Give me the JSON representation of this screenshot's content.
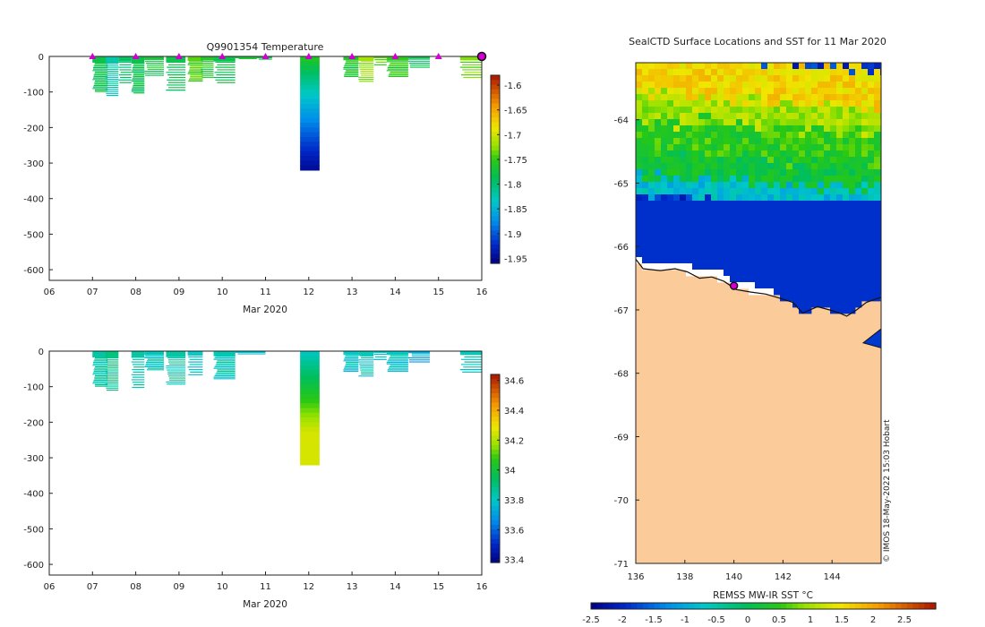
{
  "colors": {
    "background": "#ffffff",
    "land": "#fbcb9a",
    "marker_fill": "#d100d1",
    "ice_white": "#ffffff"
  },
  "charts": {
    "temperature": {
      "title": "Q9901354  Temperature",
      "xlabel": "Mar 2020",
      "x_ticks": [
        "06",
        "07",
        "08",
        "09",
        "10",
        "11",
        "12",
        "13",
        "14",
        "15",
        "16"
      ],
      "y_ticks": [
        "0",
        "-100",
        "-200",
        "-300",
        "-400",
        "-500",
        "-600"
      ],
      "colorbar_ticks": [
        "-1.6",
        "-1.65",
        "-1.7",
        "-1.75",
        "-1.8",
        "-1.85",
        "-1.9",
        "-1.95"
      ]
    },
    "salinity": {
      "title": "",
      "xlabel": "Mar 2020",
      "x_ticks": [
        "06",
        "07",
        "08",
        "09",
        "10",
        "11",
        "12",
        "13",
        "14",
        "15",
        "16"
      ],
      "y_ticks": [
        "0",
        "-100",
        "-200",
        "-300",
        "-400",
        "-500",
        "-600"
      ],
      "colorbar_ticks": [
        "34.6",
        "34.4",
        "34.2",
        "34",
        "33.8",
        "33.6",
        "33.4"
      ]
    },
    "map": {
      "title": "SealCTD Surface Locations and SST for 11 Mar 2020",
      "y_ticks": [
        "-64",
        "-65",
        "-66",
        "-67",
        "-68",
        "-69",
        "-70",
        "-71"
      ],
      "x_ticks": [
        "136",
        "138",
        "140",
        "142",
        "144"
      ],
      "colorbar_label": "REMSS MW-IR SST °C",
      "colorbar_ticks": [
        "-2.5",
        "-2",
        "-1.5",
        "-1",
        "-0.5",
        "0",
        "0.5",
        "1",
        "1.5",
        "2",
        "2.5"
      ],
      "credit": "© IMOS 18-May-2022 15:03 Hobart"
    }
  },
  "chart_data": [
    {
      "type": "heatmap",
      "title": "Q9901354  Temperature",
      "xlabel": "Mar 2020",
      "ylabel": "",
      "xlim": [
        6,
        16
      ],
      "ylim": [
        -630,
        0
      ],
      "clim": [
        -1.96,
        -1.58
      ],
      "profile_markers_x": [
        7,
        8,
        9,
        10,
        11,
        12,
        13,
        14,
        15,
        16
      ],
      "profiles": [
        {
          "x": 7.0,
          "w": 0.35,
          "min_depth": -100,
          "value": -1.78
        },
        {
          "x": 7.3,
          "w": 0.3,
          "min_depth": -112,
          "value": -1.82
        },
        {
          "x": 7.6,
          "w": 0.3,
          "min_depth": -80,
          "value": -1.79
        },
        {
          "x": 7.9,
          "w": 0.3,
          "min_depth": -105,
          "value": -1.78
        },
        {
          "x": 8.2,
          "w": 0.45,
          "min_depth": -55,
          "value": -1.77
        },
        {
          "x": 8.7,
          "w": 0.45,
          "min_depth": -95,
          "value": -1.78
        },
        {
          "x": 9.2,
          "w": 0.35,
          "min_depth": -70,
          "value": -1.74
        },
        {
          "x": 9.5,
          "w": 0.3,
          "min_depth": -60,
          "value": -1.76
        },
        {
          "x": 9.8,
          "w": 0.5,
          "min_depth": -80,
          "value": -1.78
        },
        {
          "x": 10.3,
          "w": 0.5,
          "min_depth": -10,
          "value": -1.77
        },
        {
          "x": 10.8,
          "w": 0.35,
          "min_depth": -8,
          "value": -1.78
        },
        {
          "x": 11.8,
          "w": 0.45,
          "min_depth": -320,
          "value": -1.85
        },
        {
          "x": 12.8,
          "w": 0.35,
          "min_depth": -60,
          "value": -1.76
        },
        {
          "x": 13.15,
          "w": 0.35,
          "min_depth": -72,
          "value": -1.72
        },
        {
          "x": 13.5,
          "w": 0.3,
          "min_depth": -30,
          "value": -1.74
        },
        {
          "x": 13.8,
          "w": 0.5,
          "min_depth": -60,
          "value": -1.75
        },
        {
          "x": 14.3,
          "w": 0.5,
          "min_depth": -32,
          "value": -1.78
        },
        {
          "x": 15.5,
          "w": 0.6,
          "min_depth": -60,
          "value": -1.73
        }
      ]
    },
    {
      "type": "heatmap",
      "title": "",
      "xlabel": "Mar 2020",
      "ylabel": "",
      "xlim": [
        6,
        16
      ],
      "ylim": [
        -630,
        0
      ],
      "clim": [
        33.38,
        34.64
      ],
      "profiles": [
        {
          "x": 7.0,
          "w": 0.35,
          "min_depth": -100,
          "value": 33.85
        },
        {
          "x": 7.3,
          "w": 0.3,
          "min_depth": -112,
          "value": 33.9
        },
        {
          "x": 7.9,
          "w": 0.3,
          "min_depth": -105,
          "value": 33.85
        },
        {
          "x": 8.2,
          "w": 0.45,
          "min_depth": -55,
          "value": 33.82
        },
        {
          "x": 8.7,
          "w": 0.45,
          "min_depth": -95,
          "value": 33.85
        },
        {
          "x": 9.2,
          "w": 0.35,
          "min_depth": -70,
          "value": 33.8
        },
        {
          "x": 9.8,
          "w": 0.5,
          "min_depth": -80,
          "value": 33.83
        },
        {
          "x": 10.3,
          "w": 0.7,
          "min_depth": -10,
          "value": 33.78
        },
        {
          "x": 11.8,
          "w": 0.45,
          "min_depth": -320,
          "value": 34.2
        },
        {
          "x": 12.8,
          "w": 0.35,
          "min_depth": -60,
          "value": 33.8
        },
        {
          "x": 13.15,
          "w": 0.35,
          "min_depth": -72,
          "value": 33.82
        },
        {
          "x": 13.5,
          "w": 0.3,
          "min_depth": -30,
          "value": 33.8
        },
        {
          "x": 13.8,
          "w": 0.5,
          "min_depth": -60,
          "value": 33.8
        },
        {
          "x": 14.3,
          "w": 0.5,
          "min_depth": -32,
          "value": 33.72
        },
        {
          "x": 15.5,
          "w": 0.6,
          "min_depth": -60,
          "value": 33.82
        }
      ]
    },
    {
      "type": "heatmap",
      "title": "SealCTD Surface Locations and SST for 11 Mar 2020",
      "xlabel": "",
      "ylabel": "",
      "xlim": [
        136,
        146
      ],
      "ylim": [
        -71,
        -63.1
      ],
      "clim": [
        -2.5,
        3
      ],
      "colorbar_label": "REMSS MW-IR SST °C",
      "sst_bands": [
        {
          "lat_top": -63.1,
          "lat_bottom": -63.7,
          "sst": 1.6
        },
        {
          "lat_top": -63.7,
          "lat_bottom": -64.1,
          "sst": 1.0
        },
        {
          "lat_top": -64.1,
          "lat_bottom": -64.6,
          "sst": 0.5
        },
        {
          "lat_top": -64.6,
          "lat_bottom": -65.0,
          "sst": 0.2
        },
        {
          "lat_top": -65.0,
          "lat_bottom": -65.3,
          "sst": -0.8
        },
        {
          "lat_top": -65.3,
          "lat_bottom": -66.5,
          "sst": -1.9
        }
      ],
      "coast": [
        [
          136.0,
          -66.2
        ],
        [
          136.3,
          -66.35
        ],
        [
          137.0,
          -66.38
        ],
        [
          137.6,
          -66.35
        ],
        [
          138.1,
          -66.4
        ],
        [
          138.6,
          -66.5
        ],
        [
          139.1,
          -66.48
        ],
        [
          139.6,
          -66.55
        ],
        [
          140.1,
          -66.68
        ],
        [
          140.7,
          -66.72
        ],
        [
          141.3,
          -66.75
        ],
        [
          141.9,
          -66.82
        ],
        [
          142.4,
          -66.88
        ],
        [
          142.8,
          -67.05
        ],
        [
          143.4,
          -66.95
        ],
        [
          143.9,
          -67.0
        ],
        [
          144.3,
          -67.05
        ],
        [
          144.6,
          -67.1
        ],
        [
          145.0,
          -67.0
        ],
        [
          145.4,
          -66.88
        ],
        [
          146.0,
          -66.8
        ]
      ],
      "seal_location": {
        "lon": 140.0,
        "lat": -66.62
      }
    }
  ]
}
